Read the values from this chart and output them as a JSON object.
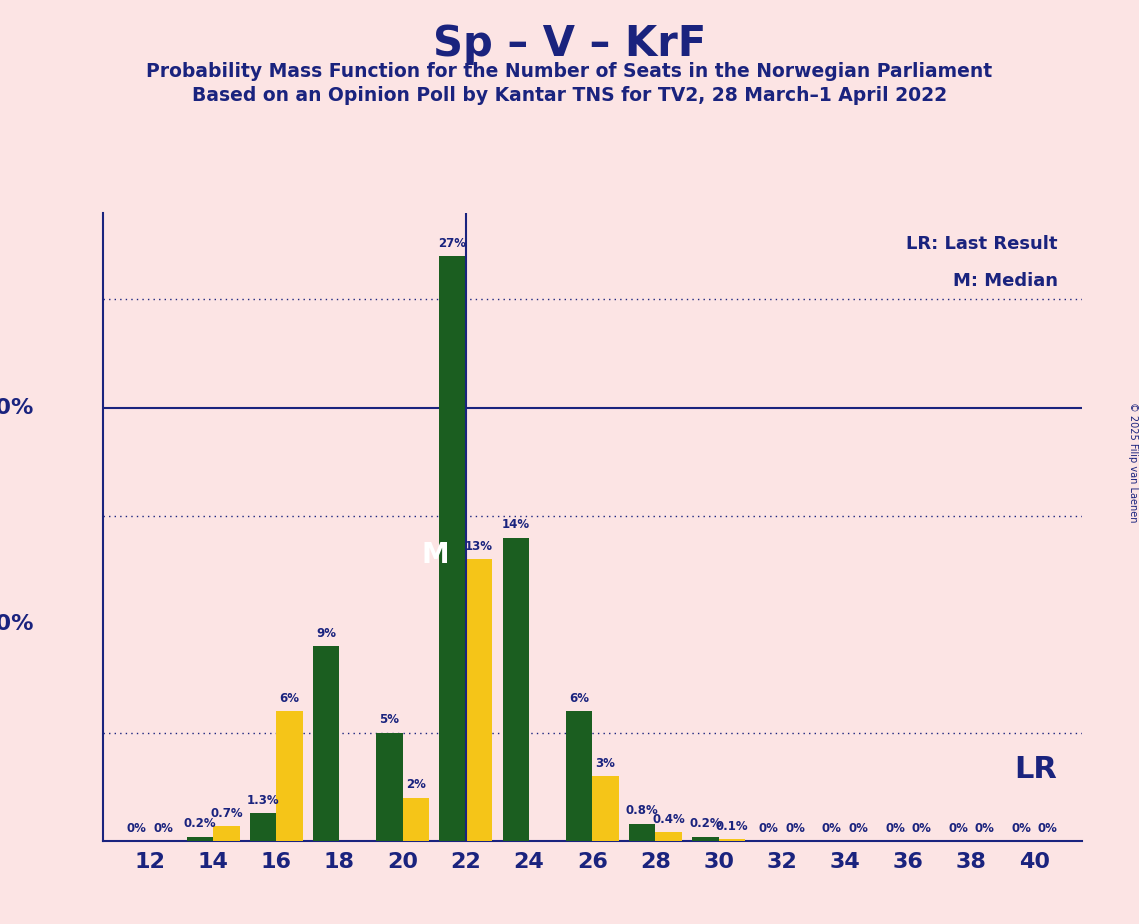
{
  "title": "Sp – V – KrF",
  "subtitle1": "Probability Mass Function for the Number of Seats in the Norwegian Parliament",
  "subtitle2": "Based on an Opinion Poll by Kantar TNS for TV2, 28 March–1 April 2022",
  "copyright": "© 2025 Filip van Laenen",
  "background_color": "#fce4e4",
  "dark_green": "#1b5e20",
  "yellow": "#f5c518",
  "navy": "#1a237e",
  "seats": [
    12,
    14,
    16,
    18,
    20,
    22,
    24,
    26,
    28,
    30,
    32,
    34,
    36,
    38,
    40
  ],
  "dark_green_values": [
    0.0,
    0.2,
    1.3,
    9.0,
    5.0,
    27.0,
    14.0,
    6.0,
    0.8,
    0.2,
    0.0,
    0.0,
    0.0,
    0.0,
    0.0
  ],
  "yellow_values": [
    0.0,
    0.7,
    6.0,
    0.0,
    2.0,
    13.0,
    0.0,
    3.0,
    0.4,
    0.1,
    0.0,
    0.0,
    0.0,
    0.0,
    0.0
  ],
  "dark_green_labels": [
    "0%",
    "0.2%",
    "1.3%",
    "9%",
    "5%",
    "27%",
    "14%",
    "6%",
    "0.8%",
    "0.2%",
    "0%",
    "0%",
    "0%",
    "0%",
    "0%"
  ],
  "yellow_labels": [
    "0%",
    "0.7%",
    "6%",
    "",
    "2%",
    "13%",
    "",
    "3%",
    "0.4%",
    "0.1%",
    "0%",
    "0%",
    "0%",
    "0%",
    "0%"
  ],
  "lr_seat_index": 5,
  "ylim": 29,
  "gridlines_dotted": [
    5,
    15,
    25
  ],
  "gridline_solid": 20,
  "bar_width": 0.42,
  "lr_legend": "LR: Last Result",
  "m_legend": "M: Median",
  "lr_label": "LR",
  "m_label": "M"
}
